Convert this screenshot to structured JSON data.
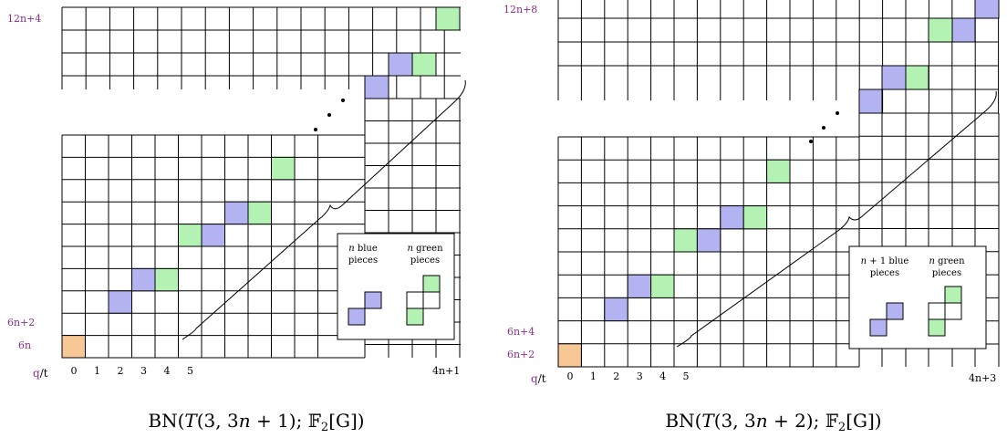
{
  "colors": {
    "purple_label": "#8B2E8B",
    "blue_cell": "#B3B3F2",
    "green_cell": "#B3F2B3",
    "orange_cell": "#F7C896",
    "grid": "#000000"
  },
  "diagrams": [
    {
      "id": "left",
      "caption": "BN(T(3, 3n + 1); 𝔽₂[G])",
      "caption_parts": {
        "bn": "BN(",
        "t": "T",
        "args": "(3, 3",
        "n": "n",
        "rest": " + 1); ",
        "field": "𝔽",
        "sub": "2",
        "g": "[G])"
      },
      "y_labels": [
        "12n+4",
        "6n+2",
        "6n"
      ],
      "axis_label": "q/t",
      "x_labels": [
        "0",
        "1",
        "2",
        "3",
        "4",
        "5"
      ],
      "x_end_label": "4n+1",
      "legend": {
        "blue_line1": "n blue",
        "blue_line2": "pieces",
        "green_line1": "n green",
        "green_line2": "pieces"
      }
    },
    {
      "id": "right",
      "caption": "BN(T(3, 3n + 2); 𝔽₂[G])",
      "caption_parts": {
        "bn": "BN(",
        "t": "T",
        "args": "(3, 3",
        "n": "n",
        "rest": " + 2); ",
        "field": "𝔽",
        "sub": "2",
        "g": "[G])"
      },
      "y_labels": [
        "12n+8",
        "6n+4",
        "6n+2"
      ],
      "axis_label": "q/t",
      "x_labels": [
        "0",
        "1",
        "2",
        "3",
        "4",
        "5"
      ],
      "x_end_label": "4n+3",
      "legend": {
        "blue_line1": "n + 1 blue",
        "blue_line2": "pieces",
        "green_line1": "n green",
        "green_line2": "pieces"
      }
    }
  ]
}
